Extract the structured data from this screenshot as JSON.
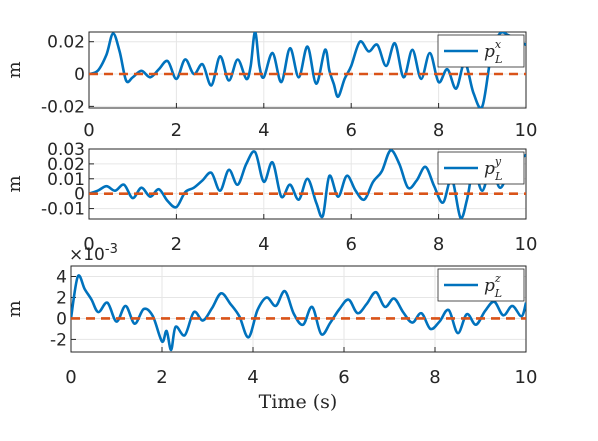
{
  "figure": {
    "xlabel": "Time (s)",
    "xticks": [
      "0",
      "2",
      "4",
      "6",
      "8",
      "10"
    ],
    "colors": {
      "signal": "#0072bd",
      "reference": "#d95319",
      "grid": "#e6e6e6",
      "axis": "#262626"
    }
  },
  "chart_data": [
    {
      "type": "line",
      "ylabel": "m",
      "xlim": [
        0,
        10
      ],
      "ylim": [
        -0.021,
        0.026
      ],
      "yticks": [
        0.02,
        0,
        -0.02
      ],
      "ytick_labels": [
        "0.02",
        "0",
        "-0.02"
      ],
      "xlim_note": "",
      "legend": {
        "label": "p_L^x",
        "label_base": "p",
        "label_sub": "L",
        "label_sup": "x",
        "position": "top-right"
      },
      "series": [
        {
          "name": "p_L^x",
          "x": [
            0,
            0.2,
            0.4,
            0.55,
            0.7,
            0.85,
            1.0,
            1.2,
            1.4,
            1.6,
            1.8,
            2.0,
            2.2,
            2.4,
            2.6,
            2.8,
            3.0,
            3.2,
            3.4,
            3.6,
            3.7,
            3.8,
            3.9,
            4.0,
            4.2,
            4.4,
            4.6,
            4.8,
            5.0,
            5.2,
            5.4,
            5.5,
            5.6,
            5.7,
            5.85,
            6.0,
            6.2,
            6.4,
            6.6,
            6.8,
            7.0,
            7.2,
            7.4,
            7.6,
            7.8,
            8.0,
            8.2,
            8.4,
            8.6,
            8.8,
            9.0,
            9.2,
            9.4,
            9.6,
            9.8,
            10.0
          ],
          "values": [
            0.0,
            0.002,
            0.012,
            0.025,
            0.014,
            -0.004,
            -0.002,
            0.002,
            -0.002,
            0.003,
            0.008,
            -0.003,
            0.009,
            0.0,
            0.006,
            -0.007,
            0.011,
            -0.004,
            0.009,
            -0.003,
            0.005,
            0.026,
            0.005,
            -0.002,
            0.013,
            -0.005,
            0.016,
            -0.002,
            0.017,
            -0.006,
            0.015,
            0.002,
            -0.006,
            -0.014,
            -0.003,
            0.005,
            0.02,
            0.014,
            0.018,
            0.005,
            0.019,
            -0.002,
            0.015,
            -0.003,
            0.013,
            -0.005,
            0.003,
            -0.009,
            0.007,
            -0.012,
            -0.02,
            0.011,
            0.025,
            0.024,
            0.021,
            0.018
          ]
        },
        {
          "name": "reference",
          "x": [
            0,
            10
          ],
          "values": [
            0,
            0
          ]
        }
      ]
    },
    {
      "type": "line",
      "ylabel": "m",
      "xlim": [
        0,
        10
      ],
      "ylim": [
        -0.017,
        0.03
      ],
      "yticks": [
        0.03,
        0.02,
        0.01,
        0,
        -0.01
      ],
      "ytick_labels": [
        "0.03",
        "0.02",
        "0.01",
        "0",
        "-0.01"
      ],
      "legend": {
        "label": "p_L^y",
        "label_base": "p",
        "label_sub": "L",
        "label_sup": "y",
        "position": "top-right"
      },
      "series": [
        {
          "name": "p_L^y",
          "x": [
            0,
            0.2,
            0.4,
            0.6,
            0.8,
            1.0,
            1.2,
            1.4,
            1.6,
            1.8,
            2.0,
            2.2,
            2.4,
            2.6,
            2.8,
            3.0,
            3.2,
            3.4,
            3.6,
            3.8,
            4.0,
            4.2,
            4.4,
            4.6,
            4.8,
            5.0,
            5.2,
            5.35,
            5.5,
            5.7,
            5.9,
            6.1,
            6.3,
            6.5,
            6.7,
            6.9,
            7.1,
            7.3,
            7.5,
            7.7,
            7.9,
            8.1,
            8.3,
            8.5,
            8.65,
            8.8,
            9.0,
            9.2,
            9.4,
            9.6,
            9.8,
            10.0
          ],
          "values": [
            0.0,
            0.002,
            0.005,
            0.002,
            0.006,
            -0.003,
            0.004,
            -0.002,
            0.003,
            -0.005,
            -0.009,
            0.001,
            0.004,
            0.009,
            0.014,
            0.002,
            0.016,
            0.006,
            0.02,
            0.028,
            0.008,
            0.021,
            -0.002,
            0.006,
            -0.004,
            0.01,
            -0.006,
            -0.015,
            0.012,
            -0.002,
            0.012,
            0.002,
            -0.004,
            0.008,
            0.015,
            0.029,
            0.02,
            0.004,
            0.009,
            0.018,
            0.005,
            -0.006,
            0.01,
            -0.016,
            -0.004,
            0.016,
            0.002,
            0.018,
            0.004,
            0.014,
            0.022,
            0.026
          ]
        },
        {
          "name": "reference",
          "x": [
            0,
            10
          ],
          "values": [
            0,
            0
          ]
        }
      ]
    },
    {
      "type": "line",
      "ylabel": "m",
      "exponent_label": "×10",
      "exponent_power": "-3",
      "xlim": [
        0,
        10
      ],
      "ylim": [
        -3.2,
        5.0
      ],
      "yticks": [
        4,
        2,
        0,
        -2
      ],
      "ytick_labels": [
        "4",
        "2",
        "0",
        "-2"
      ],
      "legend": {
        "label": "p_L^z",
        "label_base": "p",
        "label_sub": "L",
        "label_sup": "z",
        "position": "top-right"
      },
      "series": [
        {
          "name": "p_L^z",
          "x": [
            0,
            0.15,
            0.3,
            0.45,
            0.6,
            0.8,
            1.0,
            1.2,
            1.4,
            1.6,
            1.8,
            2.0,
            2.1,
            2.2,
            2.3,
            2.5,
            2.7,
            2.9,
            3.1,
            3.3,
            3.5,
            3.7,
            3.9,
            4.1,
            4.3,
            4.5,
            4.7,
            4.9,
            5.1,
            5.3,
            5.5,
            5.7,
            5.9,
            6.1,
            6.3,
            6.5,
            6.7,
            6.9,
            7.1,
            7.3,
            7.5,
            7.7,
            7.9,
            8.1,
            8.3,
            8.5,
            8.7,
            8.9,
            9.1,
            9.3,
            9.5,
            9.7,
            9.9,
            10.0
          ],
          "values": [
            0.0,
            4.0,
            2.8,
            1.8,
            0.6,
            1.5,
            -0.3,
            1.2,
            -0.5,
            0.9,
            0.2,
            -2.2,
            -1.2,
            -3.0,
            -0.8,
            -1.6,
            0.6,
            -0.2,
            1.0,
            2.4,
            1.4,
            0.2,
            -1.8,
            0.8,
            2.0,
            1.2,
            2.6,
            0.4,
            -0.6,
            1.1,
            -1.5,
            -0.4,
            0.9,
            1.8,
            0.5,
            1.4,
            2.5,
            1.1,
            1.9,
            0.6,
            -0.4,
            0.5,
            -1.0,
            -0.3,
            0.8,
            -1.4,
            0.4,
            -0.6,
            0.7,
            1.6,
            0.3,
            1.2,
            0.2,
            1.5
          ]
        },
        {
          "name": "reference",
          "x": [
            0,
            10
          ],
          "values": [
            0,
            0
          ]
        }
      ]
    }
  ]
}
